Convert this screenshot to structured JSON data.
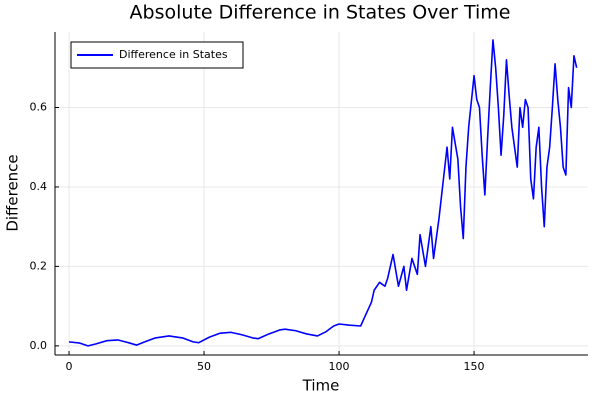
{
  "chart_data": {
    "type": "line",
    "title": "Absolute Difference in States Over Time",
    "x_label": "Time",
    "y_label": "Difference",
    "x": [
      0,
      4,
      7,
      10,
      14,
      18,
      22,
      25,
      28,
      32,
      37,
      42,
      46,
      48,
      52,
      56,
      60,
      64,
      68,
      70,
      74,
      78,
      80,
      84,
      88,
      92,
      95,
      98,
      100,
      104,
      108,
      110,
      112,
      113,
      115,
      117,
      118,
      120,
      122,
      124,
      125,
      127,
      129,
      130,
      132,
      134,
      135,
      137,
      138,
      140,
      141,
      142,
      144,
      145,
      146,
      147,
      148,
      150,
      151,
      152,
      153,
      154,
      155,
      156,
      157,
      158,
      159,
      160,
      161,
      162,
      163,
      164,
      165,
      166,
      167,
      168,
      169,
      170,
      171,
      172,
      173,
      174,
      175,
      176,
      177,
      178,
      179,
      180,
      181,
      182,
      183,
      184,
      185,
      186,
      187,
      188
    ],
    "series": [
      {
        "name": "Difference in States",
        "color": "#0000ff",
        "values": [
          0.01,
          0.007,
          0.0,
          0.005,
          0.013,
          0.015,
          0.008,
          0.002,
          0.01,
          0.02,
          0.025,
          0.02,
          0.01,
          0.008,
          0.022,
          0.032,
          0.034,
          0.028,
          0.02,
          0.018,
          0.03,
          0.04,
          0.042,
          0.038,
          0.03,
          0.025,
          0.035,
          0.05,
          0.055,
          0.052,
          0.05,
          0.08,
          0.11,
          0.14,
          0.16,
          0.15,
          0.17,
          0.23,
          0.15,
          0.2,
          0.14,
          0.22,
          0.18,
          0.28,
          0.2,
          0.3,
          0.22,
          0.32,
          0.38,
          0.5,
          0.42,
          0.55,
          0.47,
          0.35,
          0.27,
          0.45,
          0.55,
          0.68,
          0.62,
          0.6,
          0.48,
          0.38,
          0.52,
          0.65,
          0.77,
          0.7,
          0.6,
          0.48,
          0.58,
          0.72,
          0.63,
          0.55,
          0.5,
          0.45,
          0.6,
          0.55,
          0.62,
          0.6,
          0.42,
          0.37,
          0.5,
          0.55,
          0.4,
          0.3,
          0.45,
          0.5,
          0.6,
          0.71,
          0.62,
          0.55,
          0.45,
          0.43,
          0.65,
          0.6,
          0.73,
          0.7
        ]
      }
    ],
    "xlim": [
      -5.2,
      192.2
    ],
    "ylim": [
      -0.023,
      0.79
    ],
    "xticks": [
      0,
      50,
      100,
      150
    ],
    "yticks": [
      {
        "value": 0,
        "label": "0.0"
      },
      0.2,
      0.4,
      0.6
    ],
    "grid": true,
    "legend": "top-left"
  }
}
